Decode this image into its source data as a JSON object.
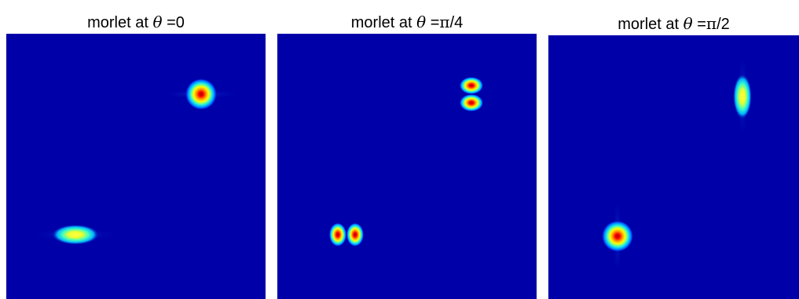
{
  "panels": [
    {
      "title_prefix": "morlet at ",
      "theta_symbol": "θ",
      "title_eq": " =",
      "title_value_pi": "",
      "title_value_rest": "0",
      "background_color": "#0000a8"
    },
    {
      "title_prefix": "morlet at ",
      "theta_symbol": "θ",
      "title_eq": " =",
      "title_value_pi": "π",
      "title_value_rest": "/4",
      "background_color": "#0000a8"
    },
    {
      "title_prefix": "morlet at ",
      "theta_symbol": "θ",
      "title_eq": " =",
      "title_value_pi": "π",
      "title_value_rest": "/2",
      "background_color": "#0000a8"
    }
  ],
  "colormap": "jet"
}
